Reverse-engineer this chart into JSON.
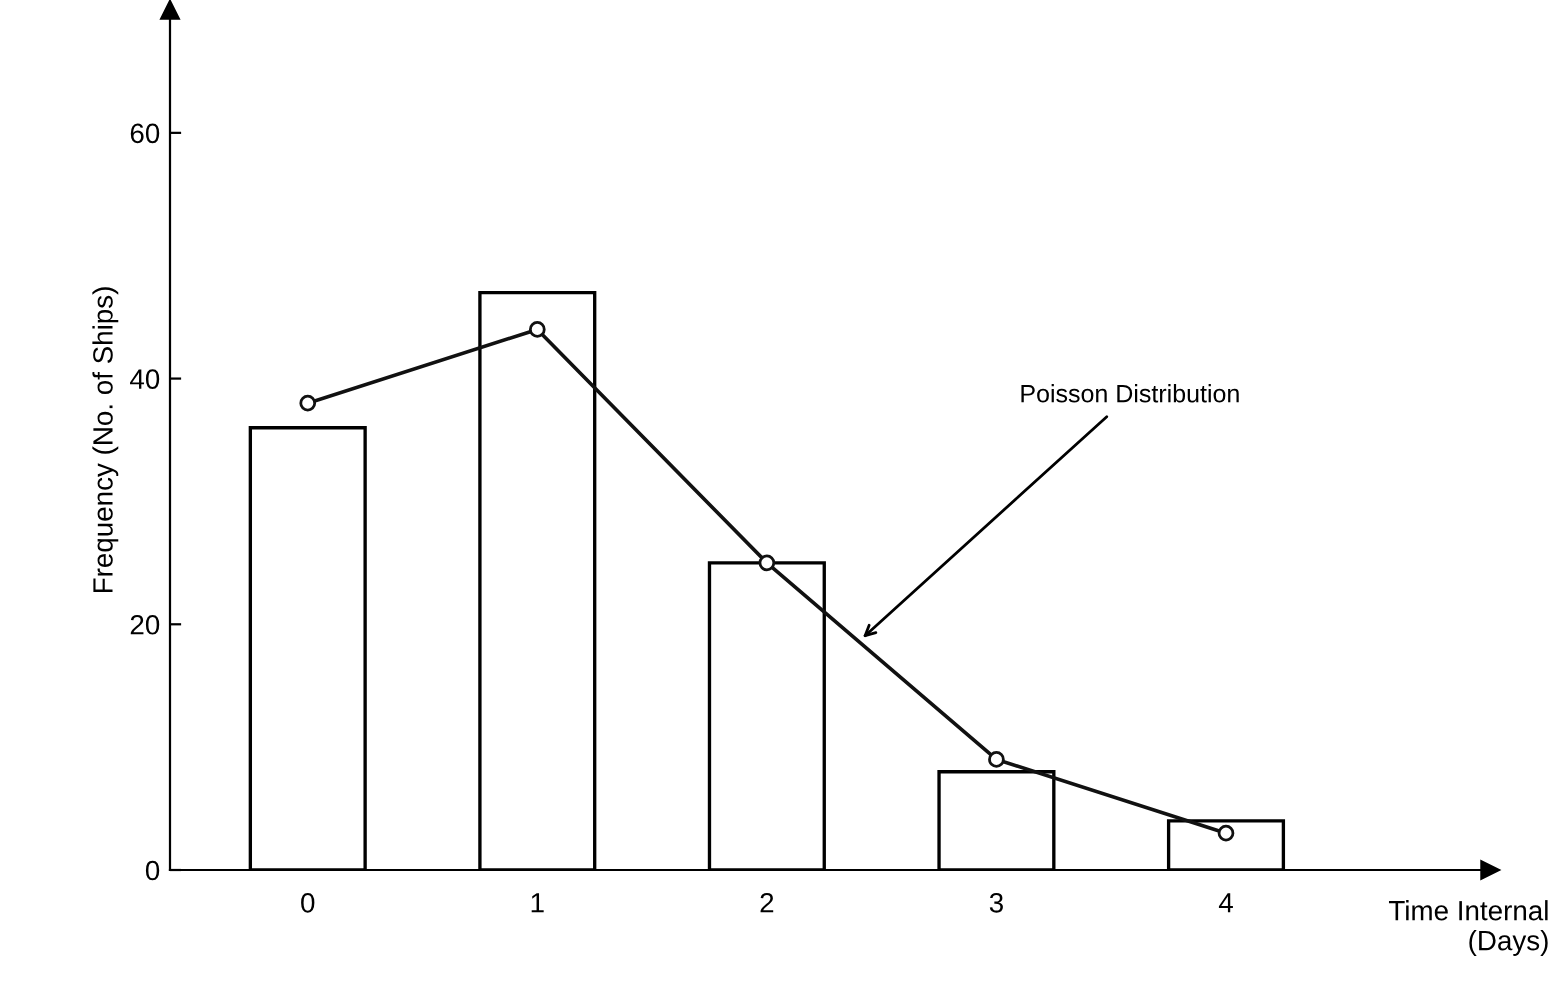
{
  "chart_data": {
    "type": "bar",
    "xlabel": "Time Internal\n(Days)",
    "ylabel": "Frequency (No. of Ships)",
    "categories": [
      "0",
      "1",
      "2",
      "3",
      "4"
    ],
    "series": [
      {
        "color": "#ffffff",
        "values": [
          36,
          47,
          25,
          8,
          4
        ]
      },
      {
        "type": "line",
        "name": "Poisson Distribution",
        "color": "#111111",
        "values": [
          38,
          44,
          25,
          9,
          3
        ]
      }
    ],
    "ylim": [
      0,
      70
    ],
    "yticks": [
      0,
      20,
      40,
      60
    ],
    "grid": false,
    "legend": false,
    "marker": "circle",
    "line_style": "solid"
  }
}
